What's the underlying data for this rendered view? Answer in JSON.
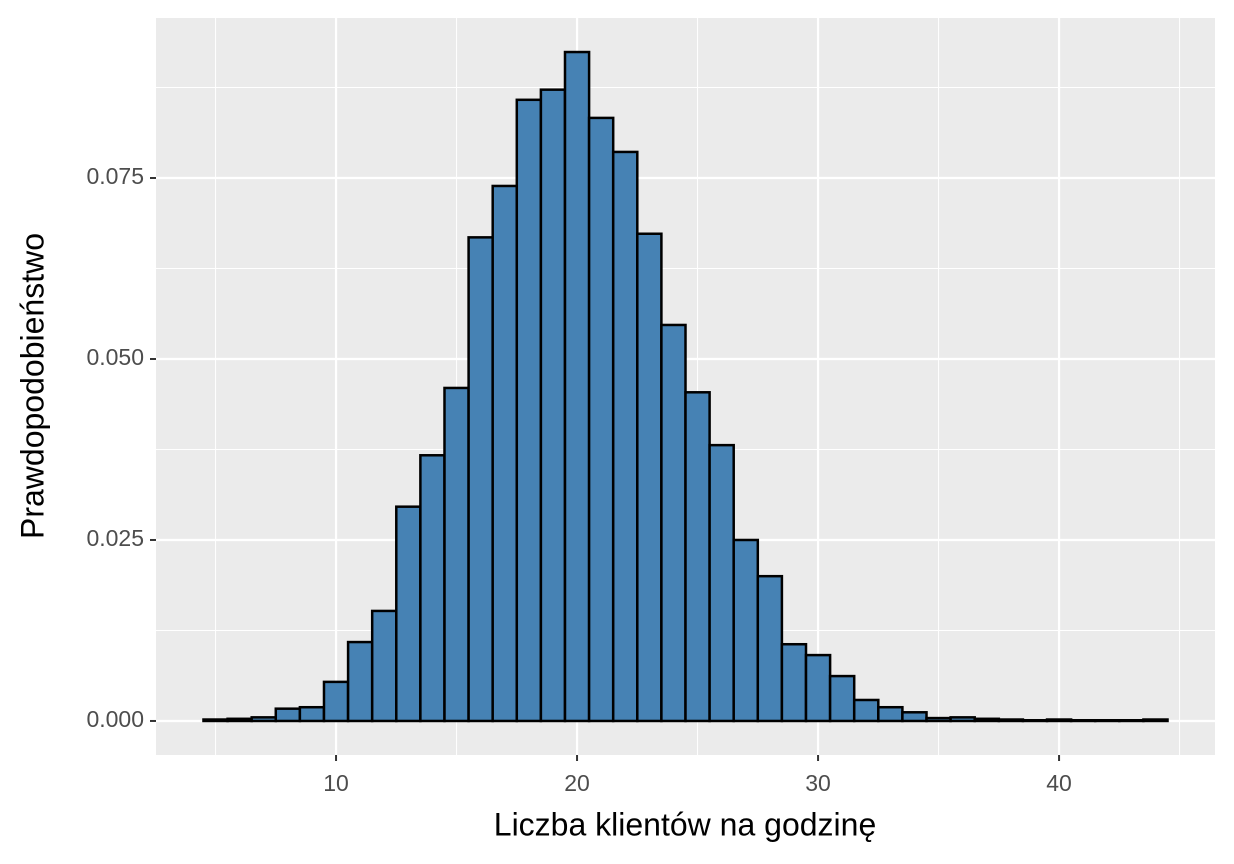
{
  "chart_data": {
    "type": "histogram",
    "x_label": "Liczba klientów na godzinę",
    "y_label": "Prawdopodobieństwo",
    "bins": [
      4.5,
      5.5,
      6.5,
      7.5,
      8.5,
      9.5,
      10.5,
      11.5,
      12.5,
      13.5,
      14.5,
      15.5,
      16.5,
      17.5,
      18.5,
      19.5,
      20.5,
      21.5,
      22.5,
      23.5,
      24.5,
      25.5,
      26.5,
      27.5,
      28.5,
      29.5,
      30.5,
      31.5,
      32.5,
      33.5,
      34.5,
      35.5,
      36.5,
      37.5,
      38.5,
      39.5,
      40.5,
      41.5,
      42.5,
      43.5,
      44.5
    ],
    "values": [
      0.0002,
      0.0003,
      0.0005,
      0.0017,
      0.0019,
      0.0054,
      0.0109,
      0.0152,
      0.0296,
      0.0367,
      0.046,
      0.0668,
      0.0739,
      0.0858,
      0.0872,
      0.0924,
      0.0833,
      0.0786,
      0.0673,
      0.0547,
      0.0454,
      0.0381,
      0.025,
      0.02,
      0.0106,
      0.0091,
      0.0062,
      0.0029,
      0.0019,
      0.0012,
      0.0004,
      0.0005,
      0.0003,
      0.0002,
      0.0001,
      0.0002,
      0.0001,
      0.0001,
      0.0001,
      0.0002
    ],
    "color": "#4682b4",
    "edge_color": "#000000",
    "xlim": [
      2.53,
      46.47
    ],
    "ylim": [
      -0.0047,
      0.0971
    ],
    "xticks": [
      10,
      20,
      30,
      40
    ],
    "yticks": [
      {
        "value": 0,
        "label": "0.000"
      },
      {
        "value": 0.025,
        "label": "0.025"
      },
      {
        "value": 0.05,
        "label": "0.050"
      },
      {
        "value": 0.075,
        "label": "0.075"
      }
    ],
    "x_minor_grid": [
      5,
      15,
      25,
      35,
      45
    ],
    "y_minor_grid": [
      0.0125,
      0.0375,
      0.0625,
      0.0875
    ],
    "grid": true
  }
}
